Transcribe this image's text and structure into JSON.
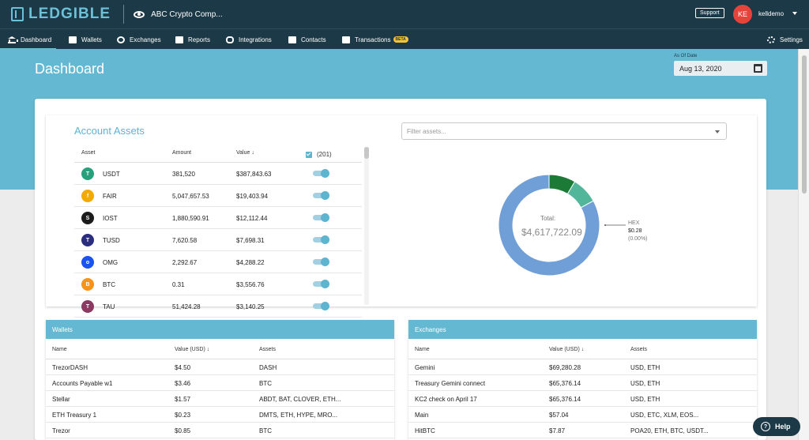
{
  "app": {
    "logo_text": "LEDGIBLE",
    "company": "ABC Crypto Comp...",
    "support_label": "Support",
    "avatar_initials": "KE",
    "username": "kelldemo"
  },
  "nav": {
    "dashboard": "Dashboard",
    "wallets": "Wallets",
    "exchanges": "Exchanges",
    "reports": "Reports",
    "integrations": "Integrations",
    "contacts": "Contacts",
    "transactions": "Transactions",
    "beta": "BETA",
    "settings": "Settings"
  },
  "header": {
    "title": "Dashboard",
    "asof_label": "As Of Date",
    "date_value": "Aug 13, 2020"
  },
  "assets": {
    "title": "Account Assets",
    "filter_placeholder": "Filter assets...",
    "col_asset": "Asset",
    "col_amount": "Amount",
    "col_value": "Value ↓",
    "select_count": "(201)",
    "rows": [
      {
        "symbol": "USDT",
        "amount": "381,520",
        "value": "$387,843.63",
        "color": "#26a17b",
        "glyph": "T"
      },
      {
        "symbol": "FAIR",
        "amount": "5,047,657.53",
        "value": "$19,403.94",
        "color": "#f2a900",
        "glyph": "f"
      },
      {
        "symbol": "IOST",
        "amount": "1,880,590.91",
        "value": "$12,112.44",
        "color": "#1c1c1c",
        "glyph": "S"
      },
      {
        "symbol": "TUSD",
        "amount": "7,620.58",
        "value": "$7,698.31",
        "color": "#2b2e7f",
        "glyph": "T"
      },
      {
        "symbol": "OMG",
        "amount": "2,292.67",
        "value": "$4,288.22",
        "color": "#1a53f0",
        "glyph": "o"
      },
      {
        "symbol": "BTC",
        "amount": "0.31",
        "value": "$3,556.76",
        "color": "#f7931a",
        "glyph": "B"
      },
      {
        "symbol": "TAU",
        "amount": "51,424.28",
        "value": "$3,140.25",
        "color": "#8b3a62",
        "glyph": "T"
      }
    ]
  },
  "donut": {
    "total_label": "Total:",
    "total_value": "$4,617,722.09",
    "callout_name": "HEX",
    "callout_value": "$0.28",
    "callout_pct": "(0.00%)",
    "segments": [
      {
        "fraction": 0.83,
        "color": "#6f9fd6"
      },
      {
        "fraction": 0.085,
        "color": "#1b7a36"
      },
      {
        "fraction": 0.085,
        "color": "#52b69a"
      }
    ]
  },
  "wallets": {
    "title": "Wallets",
    "col_name": "Name",
    "col_value": "Value (USD) ↓",
    "col_assets": "Assets",
    "rows": [
      {
        "name": "TrezorDASH",
        "value": "$4.50",
        "assets": "DASH"
      },
      {
        "name": "Accounts Payable w1",
        "value": "$3.46",
        "assets": "BTC"
      },
      {
        "name": "Stellar",
        "value": "$1.57",
        "assets": "ABDT, BAT, CLOVER, ETH..."
      },
      {
        "name": "ETH Treasury 1",
        "value": "$0.23",
        "assets": "DMTS, ETH, HYPE, MRO..."
      },
      {
        "name": "Trezor",
        "value": "$0.85",
        "assets": "BTC"
      }
    ]
  },
  "exchanges": {
    "title": "Exchanges",
    "col_name": "Name",
    "col_value": "Value (USD) ↓",
    "col_assets": "Assets",
    "rows": [
      {
        "name": "Gemini",
        "value": "$69,280.28",
        "assets": "USD, ETH"
      },
      {
        "name": "Treasury Gemini connect",
        "value": "$65,376.14",
        "assets": "USD, ETH"
      },
      {
        "name": "KC2 check on April 17",
        "value": "$65,376.14",
        "assets": "USD, ETH"
      },
      {
        "name": "Main",
        "value": "$57.04",
        "assets": "USD, ETC, XLM, EOS..."
      },
      {
        "name": "HitBTC",
        "value": "$7.87",
        "assets": "POA20, ETH, BTC, USDT..."
      }
    ]
  },
  "help_label": "Help"
}
